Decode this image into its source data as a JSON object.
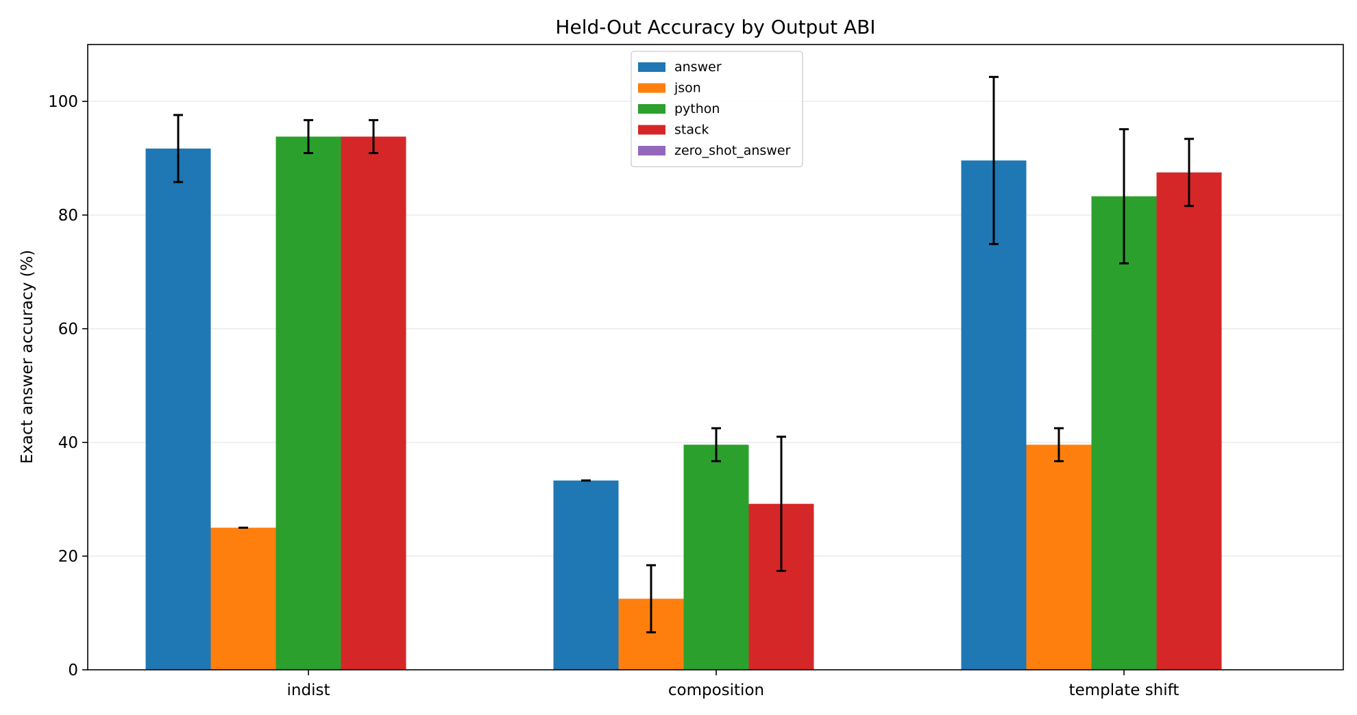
{
  "chart_data": {
    "type": "bar",
    "title": "Held-Out Accuracy by Output ABI",
    "xlabel": "",
    "ylabel": "Exact answer accuracy (%)",
    "categories": [
      "indist",
      "composition",
      "template shift"
    ],
    "ylim": [
      0,
      110
    ],
    "yticks": [
      0,
      20,
      40,
      60,
      80,
      100
    ],
    "grid": "y",
    "legend": "top-center",
    "series": [
      {
        "name": "answer",
        "color": "#1f77b4",
        "values": [
          91.7,
          33.3,
          89.6
        ],
        "errors": [
          5.9,
          0.0,
          14.7
        ]
      },
      {
        "name": "json",
        "color": "#ff7f0e",
        "values": [
          25.0,
          12.5,
          39.6
        ],
        "errors": [
          0.0,
          5.9,
          2.9
        ]
      },
      {
        "name": "python",
        "color": "#2ca02c",
        "values": [
          93.8,
          39.6,
          83.3
        ],
        "errors": [
          2.9,
          2.9,
          11.8
        ]
      },
      {
        "name": "stack",
        "color": "#d62728",
        "values": [
          93.8,
          29.2,
          87.5
        ],
        "errors": [
          2.9,
          11.8,
          5.9
        ]
      },
      {
        "name": "zero_shot_answer",
        "color": "#9467bd",
        "values": [
          0,
          0,
          0
        ],
        "errors": [
          0,
          0,
          0
        ]
      }
    ]
  }
}
